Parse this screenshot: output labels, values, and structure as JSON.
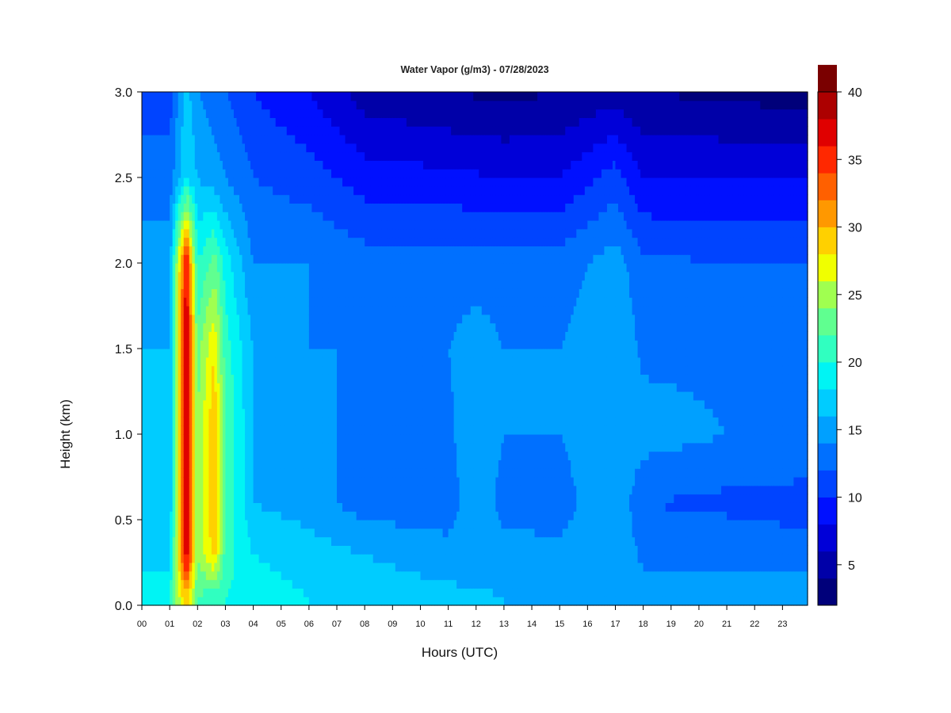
{
  "chart_data": {
    "type": "heatmap",
    "title": "Water Vapor (g/m3) - 07/28/2023",
    "xlabel": "Hours (UTC)",
    "ylabel": "Height (km)",
    "x_ticks": [
      "00",
      "01",
      "02",
      "03",
      "04",
      "05",
      "06",
      "07",
      "08",
      "09",
      "10",
      "11",
      "12",
      "13",
      "14",
      "15",
      "16",
      "17",
      "18",
      "19",
      "20",
      "21",
      "22",
      "23"
    ],
    "xlim": [
      0,
      23.9
    ],
    "y_ticks": [
      "0.0",
      "0.5",
      "1.0",
      "1.5",
      "2.0",
      "2.5",
      "3.0"
    ],
    "ylim": [
      0,
      3.0
    ],
    "colorbar": {
      "ticks": [
        "5",
        "10",
        "15",
        "20",
        "25",
        "30",
        "35",
        "40"
      ],
      "range": [
        2,
        40
      ],
      "step": 2,
      "colors": [
        "#00007a",
        "#0000a8",
        "#0000d8",
        "#0010ff",
        "#0044ff",
        "#0070ff",
        "#00a0ff",
        "#00ccff",
        "#00f4f4",
        "#30ffc0",
        "#60ff90",
        "#a0ff50",
        "#f0ff00",
        "#ffd000",
        "#ff9800",
        "#ff6000",
        "#ff2800",
        "#e00000",
        "#ac0000",
        "#7a0000"
      ]
    },
    "layers": [
      {
        "height_km": 0.05,
        "hours": [
          0,
          1,
          1.6,
          2,
          3,
          4,
          6,
          8,
          11,
          13,
          15,
          18,
          21,
          23.9
        ],
        "values": [
          19,
          20,
          30,
          22,
          20,
          19,
          18,
          17,
          16.5,
          16,
          15.5,
          15,
          15,
          15
        ]
      },
      {
        "height_km": 0.3,
        "hours": [
          0,
          1,
          1.6,
          2,
          2.6,
          3,
          4,
          6,
          8,
          11,
          13,
          15,
          17,
          18,
          21,
          23.9
        ],
        "values": [
          17,
          17,
          38,
          24,
          29,
          21,
          18,
          17,
          16,
          15,
          15,
          14.5,
          16,
          13.5,
          13.5,
          13
        ]
      },
      {
        "height_km": 0.6,
        "hours": [
          0,
          1,
          1.6,
          2,
          2.6,
          3,
          4,
          6,
          8,
          11,
          12,
          13,
          15,
          17,
          18,
          21,
          23.9
        ],
        "values": [
          16,
          16,
          38,
          24,
          30,
          22,
          16,
          15,
          13,
          12.5,
          16,
          13,
          13,
          16,
          12,
          11.5,
          11
        ]
      },
      {
        "height_km": 1.0,
        "hours": [
          0,
          1,
          1.6,
          2,
          2.6,
          3,
          4,
          6,
          8,
          11,
          12,
          13,
          15,
          17,
          18,
          21,
          23.9
        ],
        "values": [
          16,
          16,
          39,
          24,
          30,
          22,
          16,
          15,
          13,
          13.5,
          16,
          14,
          14,
          16,
          15,
          14,
          14
        ]
      },
      {
        "height_km": 1.5,
        "hours": [
          0,
          1,
          1.6,
          2,
          2.6,
          3,
          4,
          6,
          8,
          11,
          12,
          13,
          15,
          17,
          18,
          21,
          23.9
        ],
        "values": [
          16,
          16,
          39,
          23,
          28,
          21,
          16,
          14,
          14,
          14,
          15,
          14,
          14,
          16,
          13.5,
          13.5,
          13.5
        ]
      },
      {
        "height_km": 2.0,
        "hours": [
          0,
          1,
          1.6,
          2,
          2.6,
          3,
          4,
          6,
          8,
          11,
          13,
          15,
          17,
          18,
          21,
          23.9
        ],
        "values": [
          15,
          15,
          37,
          20,
          23,
          19,
          14,
          14,
          13,
          13,
          13,
          13,
          15,
          12.5,
          12,
          12
        ]
      },
      {
        "height_km": 2.5,
        "hours": [
          0,
          1,
          1.6,
          2,
          3,
          4,
          6,
          8,
          11,
          13,
          15,
          17,
          18,
          21,
          23.9
        ],
        "values": [
          13,
          13,
          18,
          16,
          14,
          12,
          11,
          9,
          8.5,
          8,
          8,
          11,
          8,
          8,
          8
        ]
      },
      {
        "height_km": 3.0,
        "hours": [
          0,
          1,
          1.6,
          2,
          3,
          4,
          6,
          8,
          11,
          13,
          15,
          17,
          18,
          21,
          23.9
        ],
        "values": [
          11,
          11,
          17,
          14,
          12,
          10,
          8,
          5,
          4,
          3.5,
          4,
          5,
          4,
          3.5,
          3
        ]
      }
    ]
  }
}
